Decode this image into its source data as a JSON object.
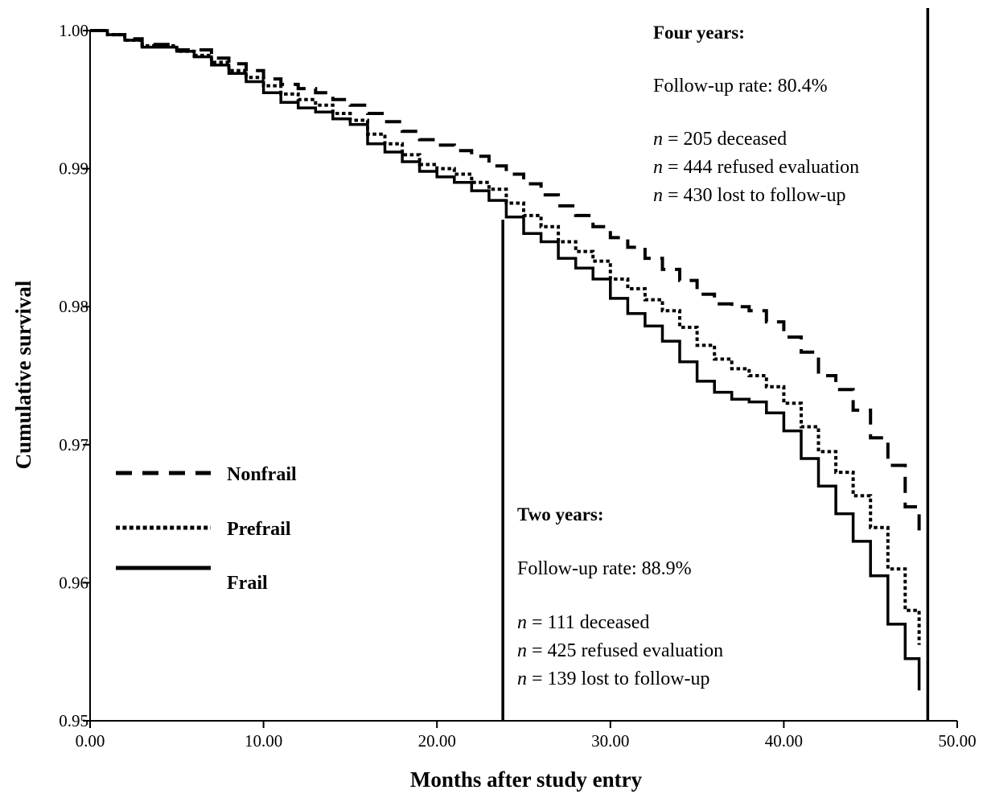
{
  "chart_data": {
    "type": "line",
    "title": "",
    "xlabel": "Months after study entry",
    "ylabel": "Cumulative survival",
    "xlim": [
      0,
      50
    ],
    "ylim": [
      0.95,
      1.0
    ],
    "x_ticks": [
      "0.00",
      "10.00",
      "20.00",
      "30.00",
      "40.00",
      "50.00"
    ],
    "y_ticks": [
      "0.95",
      "0.96",
      "0.97",
      "0.98",
      "0.99",
      "1.00"
    ],
    "grid": false,
    "legend_position": "left",
    "series": [
      {
        "name": "Nonfrail",
        "style": "dashed",
        "x": [
          0,
          1,
          2,
          3,
          5,
          7,
          8,
          9,
          10,
          11,
          12,
          13,
          14,
          15,
          16,
          17,
          18,
          19,
          20,
          21,
          22,
          23,
          24,
          25,
          26,
          27,
          28,
          29,
          30,
          31,
          32,
          33,
          34,
          35,
          36,
          37,
          38,
          39,
          40,
          41,
          42,
          43,
          44,
          45,
          46,
          47,
          47.8
        ],
        "y": [
          1.0,
          0.9997,
          0.9994,
          0.999,
          0.9986,
          0.998,
          0.9976,
          0.9971,
          0.9965,
          0.9961,
          0.9958,
          0.9955,
          0.995,
          0.9946,
          0.994,
          0.9934,
          0.9927,
          0.9921,
          0.9917,
          0.9913,
          0.9909,
          0.9902,
          0.9896,
          0.9889,
          0.9881,
          0.9873,
          0.9866,
          0.9858,
          0.985,
          0.9843,
          0.9835,
          0.9827,
          0.9819,
          0.9809,
          0.9802,
          0.98,
          0.9797,
          0.9789,
          0.9778,
          0.9767,
          0.975,
          0.974,
          0.9725,
          0.9705,
          0.9685,
          0.9655,
          0.9637
        ]
      },
      {
        "name": "Prefrail",
        "style": "dotted",
        "x": [
          0,
          1,
          2,
          3,
          5,
          6,
          7,
          8,
          9,
          10,
          11,
          12,
          13,
          14,
          15,
          16,
          17,
          18,
          19,
          20,
          21,
          22,
          23,
          24,
          25,
          26,
          27,
          28,
          29,
          30,
          31,
          32,
          33,
          34,
          35,
          36,
          37,
          38,
          39,
          40,
          41,
          42,
          43,
          44,
          45,
          46,
          47,
          47.8
        ],
        "y": [
          1.0,
          0.9997,
          0.9993,
          0.9989,
          0.9985,
          0.9982,
          0.9977,
          0.9971,
          0.9966,
          0.996,
          0.9954,
          0.995,
          0.9946,
          0.994,
          0.9935,
          0.9925,
          0.9918,
          0.991,
          0.9903,
          0.99,
          0.9896,
          0.989,
          0.9885,
          0.9875,
          0.9866,
          0.9858,
          0.9847,
          0.984,
          0.9833,
          0.982,
          0.9813,
          0.9805,
          0.9797,
          0.9785,
          0.9772,
          0.9762,
          0.9755,
          0.975,
          0.9742,
          0.973,
          0.9713,
          0.9695,
          0.968,
          0.9663,
          0.964,
          0.961,
          0.958,
          0.9555
        ]
      },
      {
        "name": "Frail",
        "style": "solid",
        "x": [
          0,
          1,
          2,
          3,
          5,
          6,
          7,
          8,
          9,
          10,
          11,
          12,
          13,
          14,
          15,
          16,
          17,
          18,
          19,
          20,
          21,
          22,
          23,
          24,
          25,
          26,
          27,
          28,
          29,
          30,
          31,
          32,
          33,
          34,
          35,
          36,
          37,
          38,
          39,
          40,
          41,
          42,
          43,
          44,
          45,
          46,
          47,
          47.8
        ],
        "y": [
          1.0,
          0.9997,
          0.9993,
          0.9988,
          0.9985,
          0.9981,
          0.9975,
          0.9969,
          0.9963,
          0.9955,
          0.9948,
          0.9944,
          0.9941,
          0.9936,
          0.9932,
          0.9918,
          0.9912,
          0.9905,
          0.9898,
          0.9894,
          0.989,
          0.9884,
          0.9877,
          0.9865,
          0.9853,
          0.9847,
          0.9835,
          0.9828,
          0.982,
          0.9806,
          0.9795,
          0.9786,
          0.9775,
          0.976,
          0.9746,
          0.9738,
          0.9733,
          0.9731,
          0.9723,
          0.971,
          0.969,
          0.967,
          0.965,
          0.963,
          0.9605,
          0.957,
          0.9545,
          0.9522
        ]
      }
    ],
    "reference_lines": [
      {
        "orientation": "vertical",
        "x": 23.8
      },
      {
        "orientation": "vertical",
        "x": 48.3
      }
    ],
    "annotations": {
      "two_years": {
        "title": "Two years:",
        "rate_prefix": "Follow-up rate: ",
        "rate_value": "88.9%",
        "lines": [
          {
            "var": "n",
            "text": " = 111 deceased"
          },
          {
            "var": "n",
            "text": " = 425 refused evaluation"
          },
          {
            "var": "n",
            "text": " = 139 lost to follow-up"
          }
        ]
      },
      "four_years": {
        "title": "Four years:",
        "rate_prefix": "Follow-up rate: ",
        "rate_value": "80.4%",
        "lines": [
          {
            "var": "n",
            "text": " = 205 deceased"
          },
          {
            "var": "n",
            "text": " = 444 refused evaluation"
          },
          {
            "var": "n",
            "text": " = 430 lost to follow-up"
          }
        ]
      }
    }
  }
}
